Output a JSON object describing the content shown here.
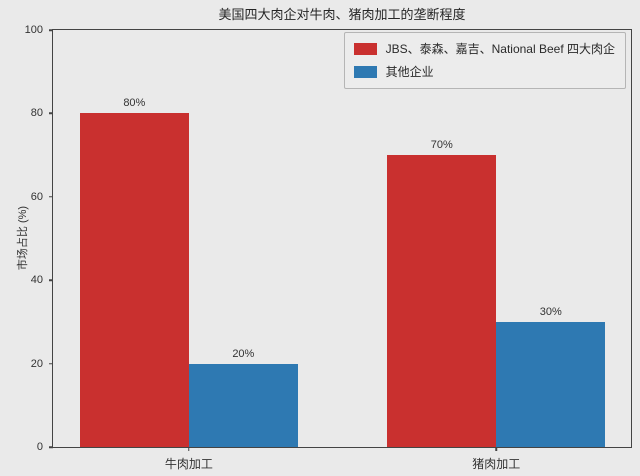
{
  "chart_data": {
    "type": "bar",
    "title": "美国四大肉企对牛肉、猪肉加工的垄断程度",
    "xlabel": "",
    "ylabel": "市场占比 (%)",
    "categories": [
      "牛肉加工",
      "猪肉加工"
    ],
    "series": [
      {
        "name": "JBS、泰森、嘉吉、National Beef 四大肉企",
        "color": "#c9302f",
        "values": [
          80,
          70
        ],
        "value_labels": [
          "80%",
          "70%"
        ]
      },
      {
        "name": "其他企业",
        "color": "#2e79b2",
        "values": [
          20,
          30
        ],
        "value_labels": [
          "20%",
          "30%"
        ]
      }
    ],
    "ylim": [
      0,
      100
    ],
    "yticks": [
      0,
      20,
      40,
      60,
      80,
      100
    ],
    "grid": false,
    "legend_position": "upper right"
  },
  "colors": {
    "figure_background": "#eaeaea",
    "axis_line": "#444444",
    "tick_text": "#333333",
    "title_text": "#262626",
    "legend_background": "#ececec",
    "legend_border": "#b5b5b5"
  }
}
